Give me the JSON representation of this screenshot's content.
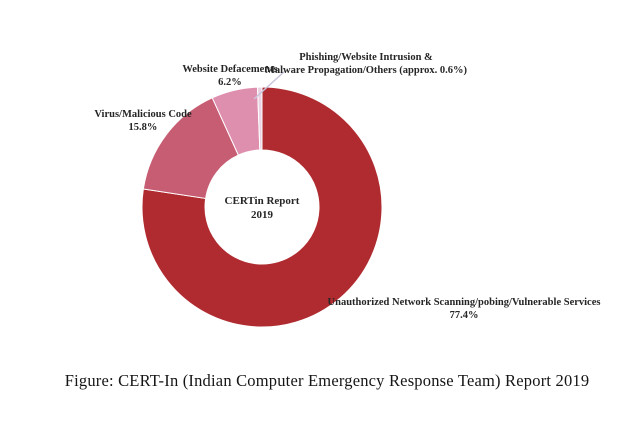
{
  "page": {
    "background_color": "#ffffff",
    "text_color": "#262626"
  },
  "chart_data": {
    "type": "pie",
    "variant": "donut",
    "direction": "clockwise",
    "start_angle_deg": 0,
    "legend": "none",
    "grid": false,
    "center_label": {
      "line1": "CERTin Report",
      "line2": "2019"
    },
    "segments": [
      {
        "name": "Unauthorized Network Scanning/pobing/Vulnerable Services",
        "value": 77.4,
        "color": "#B02B30",
        "label_lines": [
          "Unauthorized Network Scanning/pobing/Vulnerable Services",
          "77.4%"
        ]
      },
      {
        "name": "Virus/Malicious Code",
        "value": 15.8,
        "color": "#C75D72",
        "label_lines": [
          "Virus/Malicious Code",
          "15.8%"
        ]
      },
      {
        "name": "Website Defacements",
        "value": 6.2,
        "color": "#DF8FAE",
        "label_lines": [
          "Website Defacements",
          "6.2%"
        ]
      },
      {
        "name": "Phishing/Website Intrusion & Malware Propagation/Others",
        "value": 0.6,
        "color": "#E9D3E3",
        "label_lines": [
          "Phishing/Website Intrusion &",
          "Malware Propagation/Others (approx. 0.6%)"
        ]
      }
    ],
    "slice_border_color": "#ffffff",
    "leader_line_color": "#C9C4DA"
  },
  "caption": {
    "text": "Figure: CERT-In (Indian Computer Emergency Response Team) Report 2019"
  }
}
